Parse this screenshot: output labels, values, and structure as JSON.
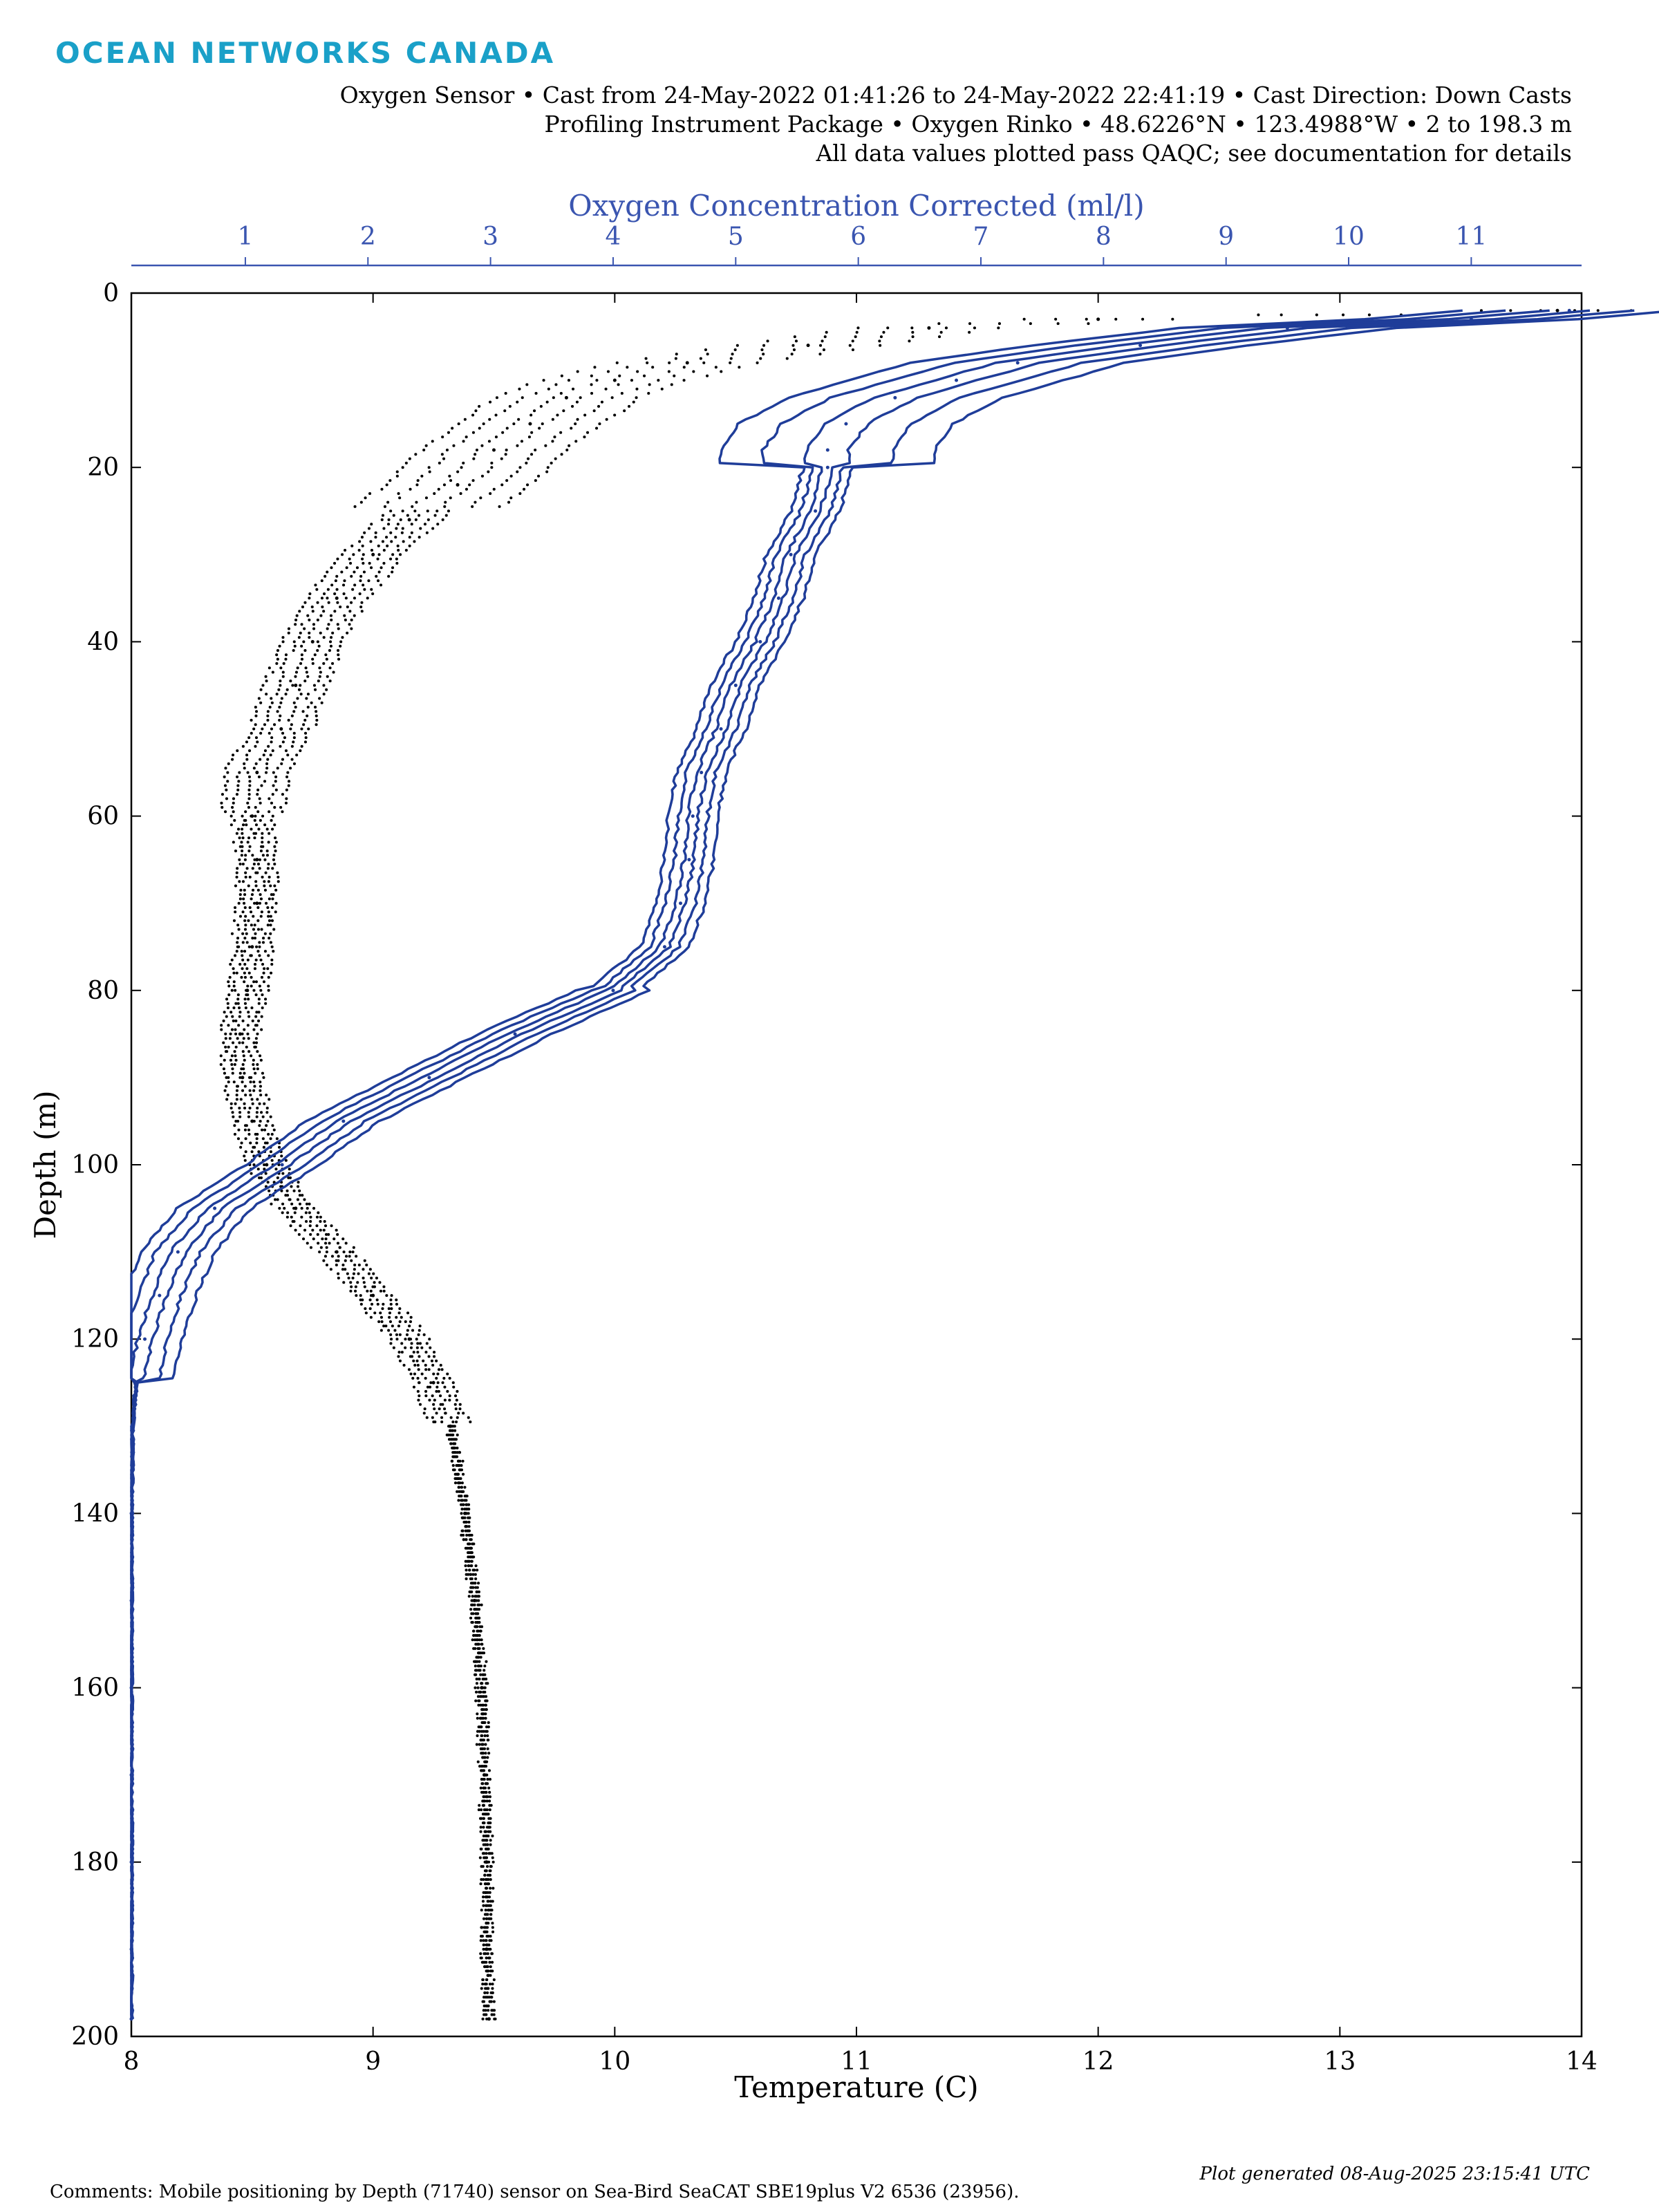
{
  "header": {
    "logo_text": "OCEAN NETWORKS CANADA",
    "line1": "Oxygen Sensor • Cast from 24-May-2022 01:41:26 to 24-May-2022 22:41:19 • Cast Direction: Down Casts",
    "line2": "Profiling Instrument Package • Oxygen Rinko • 48.6226°N • 123.4988°W • 2 to 198.3 m",
    "line3": "All data values plotted pass QAQC; see documentation for details"
  },
  "footer": {
    "comments": "Comments: Mobile positioning by Depth (71740) sensor on Sea-Bird SeaCAT SBE19plus V2 6536 (23956).",
    "generated": "Plot generated 08-Aug-2025 23:15:41 UTC"
  },
  "chart_data": {
    "type": "scatter",
    "title": "",
    "xlabel": "Temperature (C)",
    "ylabel": "Depth (m)",
    "x2label": "Oxygen Concentration Corrected (ml/l)",
    "xlim": [
      8,
      14
    ],
    "x2lim": [
      0.07,
      11.9
    ],
    "ylim": [
      0,
      200
    ],
    "y_reversed": true,
    "grid": false,
    "x_ticks": [
      "8",
      "9",
      "10",
      "11",
      "12",
      "13",
      "14"
    ],
    "x2_ticks": [
      "1",
      "2",
      "3",
      "4",
      "5",
      "6",
      "7",
      "8",
      "9",
      "10",
      "11"
    ],
    "y_ticks": [
      "0",
      "20",
      "40",
      "60",
      "80",
      "100",
      "120",
      "140",
      "160",
      "180",
      "200"
    ],
    "colors": {
      "temperature": "#000000",
      "oxygen": "#1f3d99",
      "oxygen_axis": "#3a55b0"
    },
    "series": [
      {
        "axis": "bottom",
        "color": "#000000",
        "style": "points",
        "depth": [
          2,
          3,
          4,
          6,
          8,
          10,
          12,
          15,
          18,
          22,
          26,
          30,
          35,
          40,
          45,
          50,
          55,
          60,
          65,
          70,
          75,
          80,
          85,
          90,
          95,
          100,
          105,
          110,
          115,
          120,
          125,
          130,
          140,
          150,
          160,
          170,
          180,
          190,
          198
        ],
        "x": [
          13.9,
          12.0,
          11.3,
          10.8,
          10.3,
          10.0,
          9.8,
          9.65,
          9.5,
          9.35,
          9.15,
          9.0,
          8.85,
          8.75,
          8.68,
          8.62,
          8.52,
          8.5,
          8.52,
          8.52,
          8.5,
          8.48,
          8.45,
          8.46,
          8.5,
          8.56,
          8.68,
          8.85,
          9.0,
          9.15,
          9.25,
          9.32,
          9.38,
          9.42,
          9.45,
          9.46,
          9.47,
          9.47,
          9.48
        ]
      },
      {
        "axis": "top",
        "color": "#1f3d99",
        "style": "line",
        "depth": [
          2,
          3,
          4,
          6,
          8,
          10,
          12,
          15,
          18,
          20,
          25,
          30,
          35,
          40,
          45,
          50,
          55,
          60,
          65,
          70,
          75,
          80,
          85,
          90,
          95,
          100,
          105,
          110,
          115,
          120,
          125,
          130,
          140,
          150,
          160,
          170,
          180,
          190,
          198
        ],
        "x": [
          11.8,
          11.0,
          9.5,
          8.3,
          7.3,
          6.8,
          6.3,
          5.9,
          5.75,
          5.75,
          5.65,
          5.45,
          5.35,
          5.2,
          5.0,
          4.88,
          4.72,
          4.65,
          4.62,
          4.55,
          4.42,
          4.0,
          3.2,
          2.5,
          1.8,
          1.3,
          0.75,
          0.45,
          0.3,
          0.18,
          0.11,
          0.08,
          0.07,
          0.07,
          0.07,
          0.07,
          0.07,
          0.07,
          0.07
        ]
      }
    ]
  }
}
